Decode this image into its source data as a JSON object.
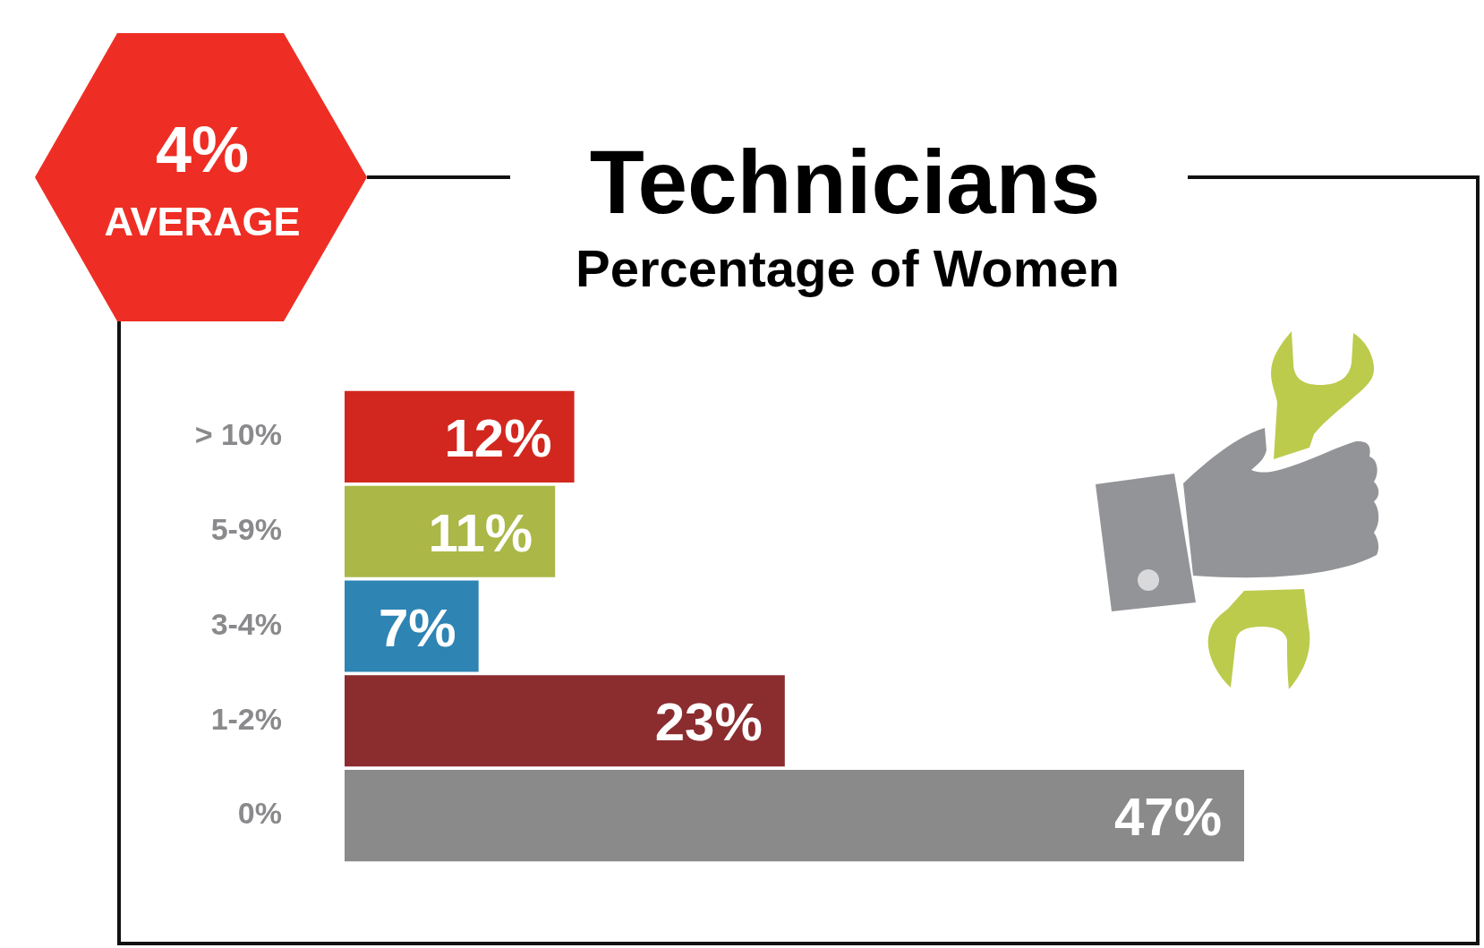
{
  "chart_data": {
    "type": "bar",
    "orientation": "horizontal",
    "title": "Technicians",
    "subtitle": "Percentage of Women",
    "annotations": [
      "4%",
      "AVERAGE"
    ],
    "categories": [
      "> 10%",
      "5-9%",
      "3-4%",
      "1-2%",
      "0%"
    ],
    "values": [
      12,
      11,
      7,
      23,
      47
    ],
    "colors": [
      "#d2271f",
      "#abb746",
      "#2e84b3",
      "#8b2c2f",
      "#8a8a8a"
    ],
    "value_labels": [
      "12%",
      "11%",
      "7%",
      "23%",
      "47%"
    ]
  }
}
